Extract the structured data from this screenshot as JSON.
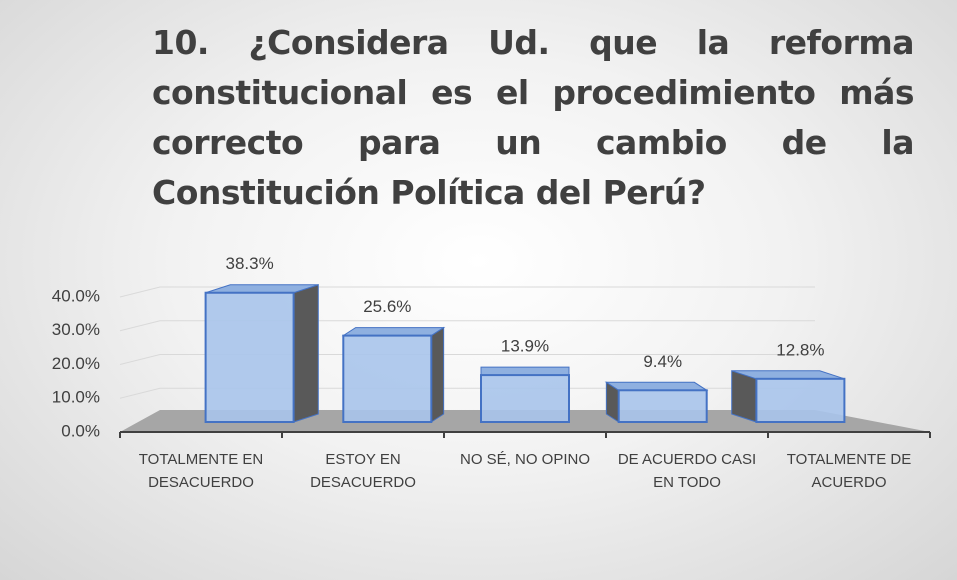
{
  "chart_data": {
    "type": "bar3d",
    "title": "10. ¿Considera Ud. que la reforma constitucional es el procedimiento más correcto para un cambio de la Constitución Política del Perú?",
    "categories": [
      "TOTALMENTE EN DESACUERDO",
      "ESTOY EN DESACUERDO",
      "NO SÉ, NO OPINO",
      "DE ACUERDO CASI EN TODO",
      "TOTALMENTE DE ACUERDO"
    ],
    "values": [
      38.3,
      25.6,
      13.9,
      9.4,
      12.8
    ],
    "value_labels": [
      "38.3%",
      "25.6%",
      "13.9%",
      "9.4%",
      "12.8%"
    ],
    "color": "#a9c4eb",
    "ylim": [
      0,
      40
    ],
    "yticks": [
      {
        "value": 0,
        "label": "0.0%"
      },
      {
        "value": 10,
        "label": "10.0%"
      },
      {
        "value": 20,
        "label": "20.0%"
      },
      {
        "value": 30,
        "label": "30.0%"
      },
      {
        "value": 40,
        "label": "40.0%"
      }
    ],
    "grid": true
  }
}
